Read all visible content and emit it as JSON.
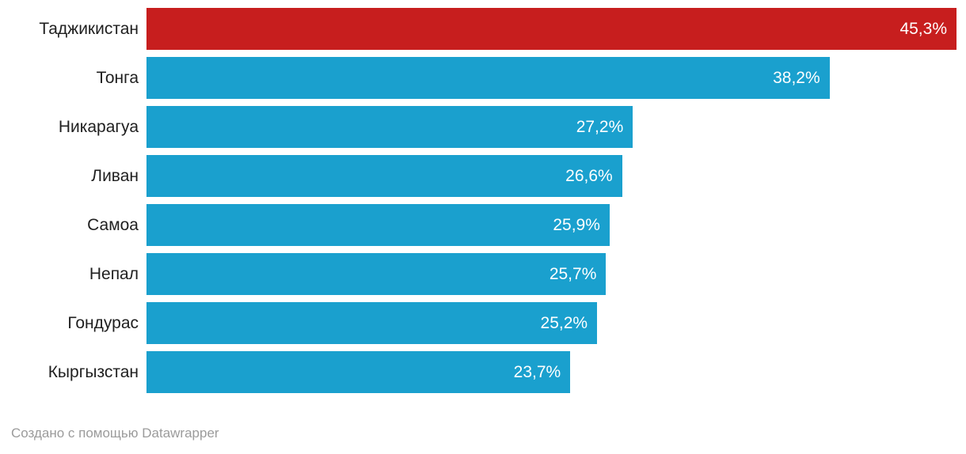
{
  "chart_data": {
    "type": "bar",
    "orientation": "horizontal",
    "title": "",
    "xlabel": "",
    "ylabel": "",
    "grid": false,
    "legend": false,
    "xlim": [
      0,
      45.3
    ],
    "categories": [
      "Таджикистан",
      "Тонга",
      "Никарагуа",
      "Ливан",
      "Самоа",
      "Непал",
      "Гондурас",
      "Кыргызстан"
    ],
    "values": [
      45.3,
      38.2,
      27.2,
      26.6,
      25.9,
      25.7,
      25.2,
      23.7
    ],
    "value_labels": [
      "45,3%",
      "38,2%",
      "27,2%",
      "26,6%",
      "25,9%",
      "25,7%",
      "25,2%",
      "23,7%"
    ],
    "value_label_position": "inside-end",
    "bar_colors": [
      "#c71e1e",
      "#1aa0ce",
      "#1aa0ce",
      "#1aa0ce",
      "#1aa0ce",
      "#1aa0ce",
      "#1aa0ce",
      "#1aa0ce"
    ],
    "highlight_color": "#c71e1e",
    "base_color": "#1aa0ce",
    "value_text_color": "#ffffff",
    "label_text_color": "#1f1f1f"
  },
  "footer": {
    "prefix": "Создано с помощью ",
    "link_label": "Datawrapper"
  }
}
